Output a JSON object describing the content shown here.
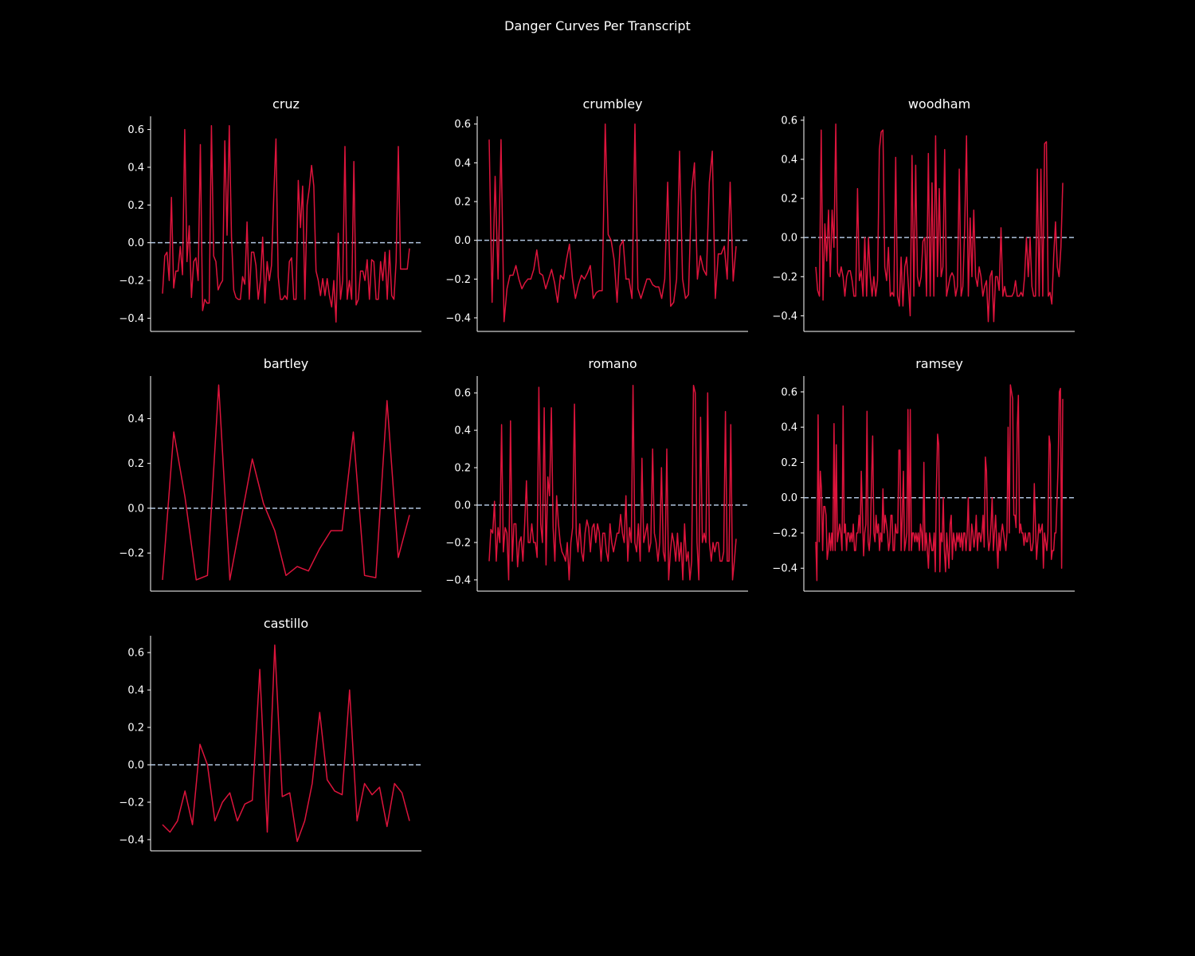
{
  "figure": {
    "title": "Danger Curves Per Transcript",
    "background": "#000000",
    "line_color": "#dc143c",
    "zero_line_color": "#b0c4de",
    "text_color": "#ffffff"
  },
  "chart_data": [
    {
      "type": "line",
      "title": "cruz",
      "xlabel": "",
      "ylabel": "",
      "yticks": [
        -0.4,
        -0.2,
        0.0,
        0.2,
        0.4,
        0.6
      ],
      "ylim": [
        -0.47,
        0.67
      ],
      "reference_line": 0.0,
      "series": [
        {
          "values": [
            -0.27,
            -0.07,
            -0.05,
            -0.2,
            0.24,
            -0.24,
            -0.15,
            -0.15,
            -0.02,
            -0.17,
            0.6,
            -0.1,
            0.09,
            -0.29,
            -0.1,
            -0.08,
            -0.2,
            0.52,
            -0.36,
            -0.3,
            -0.32,
            -0.32,
            0.62,
            -0.07,
            -0.1,
            -0.25,
            -0.22,
            -0.2,
            0.54,
            0.04,
            0.62,
            0.03,
            -0.25,
            -0.29,
            -0.3,
            -0.3,
            -0.18,
            -0.22,
            0.11,
            -0.3,
            -0.05,
            -0.05,
            -0.12,
            -0.3,
            -0.2,
            0.03,
            -0.32,
            -0.1,
            -0.2,
            -0.12,
            0.24,
            0.55,
            -0.18,
            -0.3,
            -0.3,
            -0.28,
            -0.3,
            -0.1,
            -0.08,
            -0.3,
            -0.3,
            0.33,
            0.08,
            0.3,
            -0.3,
            0.2,
            0.29,
            0.41,
            0.3,
            -0.15,
            -0.2,
            -0.28,
            -0.19,
            -0.28,
            -0.19,
            -0.28,
            -0.34,
            -0.2,
            -0.42,
            0.05,
            -0.3,
            -0.2,
            0.51,
            -0.3,
            -0.2,
            -0.3,
            0.43,
            -0.33,
            -0.3,
            -0.15,
            -0.15,
            -0.2,
            -0.09,
            -0.3,
            -0.09,
            -0.1,
            -0.3,
            -0.3,
            -0.1,
            -0.2,
            -0.05,
            -0.3,
            -0.04,
            -0.28,
            -0.3,
            -0.1,
            0.51,
            -0.14,
            -0.14,
            -0.14,
            -0.14,
            -0.03
          ]
        }
      ]
    },
    {
      "type": "line",
      "title": "crumbley",
      "xlabel": "",
      "ylabel": "",
      "yticks": [
        -0.4,
        -0.2,
        0.0,
        0.2,
        0.4,
        0.6
      ],
      "ylim": [
        -0.47,
        0.64
      ],
      "reference_line": 0.0,
      "series": [
        {
          "values": [
            0.52,
            -0.32,
            0.33,
            -0.2,
            0.52,
            -0.42,
            -0.25,
            -0.18,
            -0.18,
            -0.13,
            -0.2,
            -0.25,
            -0.22,
            -0.2,
            -0.2,
            -0.15,
            -0.05,
            -0.17,
            -0.18,
            -0.25,
            -0.2,
            -0.15,
            -0.22,
            -0.32,
            -0.18,
            -0.2,
            -0.1,
            -0.02,
            -0.2,
            -0.3,
            -0.23,
            -0.18,
            -0.2,
            -0.17,
            -0.13,
            -0.3,
            -0.27,
            -0.26,
            -0.26,
            0.6,
            0.03,
            0.0,
            -0.1,
            -0.32,
            -0.03,
            0.0,
            -0.2,
            -0.2,
            -0.3,
            0.6,
            -0.25,
            -0.3,
            -0.25,
            -0.2,
            -0.2,
            -0.23,
            -0.24,
            -0.24,
            -0.3,
            -0.2,
            0.3,
            -0.34,
            -0.32,
            -0.2,
            0.46,
            -0.2,
            -0.3,
            -0.28,
            0.25,
            0.4,
            -0.2,
            -0.08,
            -0.15,
            -0.18,
            0.3,
            0.46,
            -0.3,
            -0.07,
            -0.07,
            -0.03,
            -0.2,
            0.3,
            -0.21,
            -0.03
          ]
        }
      ]
    },
    {
      "type": "line",
      "title": "woodham",
      "xlabel": "",
      "ylabel": "",
      "yticks": [
        -0.4,
        -0.2,
        0.0,
        0.2,
        0.4,
        0.6
      ],
      "ylim": [
        -0.48,
        0.62
      ],
      "reference_line": 0.0,
      "series": [
        {
          "values": [
            -0.15,
            -0.27,
            -0.3,
            0.55,
            -0.32,
            0.07,
            -0.12,
            0.14,
            -0.2,
            0.14,
            -0.05,
            0.58,
            -0.18,
            -0.2,
            -0.15,
            -0.2,
            -0.3,
            -0.2,
            -0.17,
            -0.17,
            -0.22,
            -0.3,
            -0.3,
            0.25,
            -0.22,
            -0.17,
            -0.3,
            0.0,
            -0.3,
            0.0,
            -0.2,
            -0.3,
            -0.2,
            -0.3,
            -0.22,
            0.45,
            0.54,
            0.55,
            -0.15,
            -0.22,
            -0.05,
            -0.3,
            -0.28,
            -0.3,
            0.41,
            -0.3,
            -0.35,
            -0.1,
            -0.35,
            -0.15,
            -0.1,
            -0.25,
            -0.4,
            0.42,
            -0.3,
            0.37,
            -0.2,
            -0.25,
            -0.2,
            -0.02,
            0.0,
            -0.3,
            0.43,
            -0.3,
            0.28,
            -0.3,
            0.52,
            -0.2,
            0.25,
            -0.2,
            -0.15,
            0.45,
            -0.3,
            -0.25,
            -0.2,
            -0.18,
            -0.2,
            -0.3,
            -0.25,
            0.35,
            -0.3,
            -0.25,
            0.05,
            0.52,
            -0.3,
            0.1,
            -0.2,
            0.14,
            -0.2,
            -0.25,
            -0.15,
            -0.2,
            -0.3,
            -0.25,
            -0.22,
            -0.43,
            -0.2,
            -0.17,
            -0.43,
            -0.2,
            -0.2,
            -0.27,
            0.05,
            -0.3,
            -0.25,
            -0.3,
            -0.3,
            -0.3,
            -0.3,
            -0.28,
            -0.22,
            -0.3,
            -0.3,
            -0.28,
            -0.3,
            -0.2,
            0.0,
            -0.2,
            0.0,
            -0.25,
            -0.3,
            -0.3,
            0.35,
            -0.3,
            0.35,
            -0.3,
            0.48,
            0.49,
            -0.3,
            -0.28,
            -0.34,
            -0.1,
            0.08,
            -0.15,
            -0.2,
            -0.05,
            0.28
          ]
        }
      ]
    },
    {
      "type": "line",
      "title": "bartley",
      "xlabel": "",
      "ylabel": "",
      "yticks": [
        -0.2,
        0.0,
        0.2,
        0.4
      ],
      "ylim": [
        -0.37,
        0.59
      ],
      "reference_line": 0.0,
      "series": [
        {
          "values": [
            -0.32,
            0.34,
            0.05,
            -0.32,
            -0.3,
            0.55,
            -0.32,
            -0.05,
            0.22,
            0.02,
            -0.1,
            -0.3,
            -0.26,
            -0.28,
            -0.18,
            -0.1,
            -0.1,
            0.34,
            -0.3,
            -0.31,
            0.48,
            -0.22,
            -0.03
          ]
        }
      ]
    },
    {
      "type": "line",
      "title": "romano",
      "xlabel": "",
      "ylabel": "",
      "yticks": [
        -0.4,
        -0.2,
        0.0,
        0.2,
        0.4,
        0.6
      ],
      "ylim": [
        -0.46,
        0.69
      ],
      "reference_line": 0.0,
      "series": [
        {
          "values": [
            -0.3,
            -0.13,
            -0.15,
            0.02,
            -0.3,
            -0.12,
            -0.2,
            0.43,
            -0.25,
            -0.12,
            -0.15,
            -0.4,
            0.45,
            -0.3,
            -0.1,
            -0.1,
            -0.33,
            -0.2,
            -0.17,
            -0.3,
            -0.1,
            0.13,
            -0.2,
            -0.2,
            -0.1,
            -0.2,
            -0.2,
            -0.28,
            0.63,
            -0.1,
            -0.2,
            0.52,
            -0.32,
            0.15,
            0.05,
            0.52,
            -0.12,
            -0.3,
            0.05,
            -0.1,
            -0.2,
            -0.25,
            -0.27,
            -0.3,
            -0.2,
            -0.4,
            -0.2,
            -0.12,
            0.54,
            -0.15,
            -0.25,
            -0.1,
            -0.25,
            -0.3,
            -0.15,
            -0.08,
            -0.12,
            -0.25,
            -0.12,
            -0.1,
            -0.2,
            -0.1,
            -0.15,
            -0.3,
            -0.15,
            -0.15,
            -0.25,
            -0.3,
            -0.1,
            -0.2,
            -0.25,
            -0.2,
            -0.15,
            -0.15,
            -0.05,
            -0.15,
            -0.2,
            0.05,
            -0.3,
            -0.12,
            -0.2,
            0.64,
            -0.2,
            -0.25,
            -0.1,
            -0.3,
            0.25,
            -0.2,
            -0.15,
            -0.1,
            -0.25,
            -0.2,
            0.3,
            -0.15,
            -0.2,
            -0.3,
            -0.2,
            0.2,
            -0.25,
            -0.3,
            0.3,
            -0.4,
            -0.25,
            -0.15,
            -0.2,
            -0.3,
            -0.15,
            -0.3,
            -0.2,
            -0.4,
            -0.1,
            -0.3,
            -0.25,
            -0.4,
            -0.3,
            0.64,
            0.6,
            -0.2,
            -0.4,
            0.47,
            -0.2,
            -0.15,
            -0.2,
            0.6,
            -0.2,
            -0.3,
            -0.2,
            -0.25,
            -0.2,
            -0.2,
            -0.3,
            -0.3,
            -0.25,
            0.5,
            -0.3,
            -0.3,
            0.43,
            -0.4,
            -0.3,
            -0.18
          ]
        }
      ]
    },
    {
      "type": "line",
      "title": "ramsey",
      "xlabel": "",
      "ylabel": "",
      "yticks": [
        -0.4,
        -0.2,
        0.0,
        0.2,
        0.4,
        0.6
      ],
      "ylim": [
        -0.53,
        0.69
      ],
      "reference_line": 0.0,
      "series": [
        {
          "values": [
            -0.25,
            -0.47,
            0.47,
            -0.25,
            0.15,
            0.05,
            -0.3,
            -0.05,
            -0.05,
            -0.1,
            -0.35,
            -0.3,
            -0.2,
            -0.3,
            -0.2,
            -0.3,
            0.42,
            -0.3,
            0.3,
            -0.25,
            -0.2,
            -0.15,
            -0.2,
            -0.3,
            0.52,
            -0.2,
            -0.15,
            -0.3,
            -0.2,
            -0.2,
            -0.25,
            -0.2,
            -0.25,
            -0.15,
            -0.3,
            -0.3,
            -0.2,
            -0.2,
            -0.1,
            -0.2,
            0.15,
            -0.1,
            -0.33,
            -0.2,
            -0.15,
            0.49,
            -0.25,
            -0.3,
            -0.2,
            0.1,
            0.35,
            -0.2,
            -0.25,
            -0.1,
            -0.2,
            -0.15,
            -0.3,
            -0.2,
            -0.25,
            0.05,
            -0.2,
            -0.1,
            -0.15,
            -0.2,
            -0.3,
            -0.25,
            -0.1,
            -0.1,
            -0.3,
            -0.3,
            -0.15,
            -0.2,
            -0.2,
            0.27,
            0.27,
            -0.3,
            -0.1,
            0.15,
            -0.3,
            -0.25,
            -0.2,
            0.5,
            -0.3,
            0.5,
            -0.3,
            -0.2,
            -0.2,
            -0.25,
            -0.2,
            -0.25,
            -0.2,
            -0.3,
            -0.15,
            -0.2,
            -0.3,
            0.2,
            -0.3,
            -0.2,
            -0.3,
            -0.4,
            -0.2,
            -0.25,
            -0.3,
            -0.3,
            -0.2,
            -0.42,
            0.05,
            0.36,
            0.3,
            -0.42,
            -0.2,
            -0.25,
            0.0,
            -0.3,
            -0.42,
            -0.2,
            -0.3,
            -0.4,
            -0.15,
            -0.1,
            -0.35,
            -0.2,
            -0.25,
            -0.3,
            -0.2,
            -0.25,
            -0.2,
            -0.28,
            -0.2,
            -0.3,
            -0.2,
            -0.2,
            -0.3,
            -0.2,
            0.0,
            -0.3,
            -0.3,
            -0.15,
            -0.2,
            -0.28,
            -0.22,
            -0.1,
            -0.3,
            -0.2,
            -0.2,
            -0.25,
            -0.2,
            -0.1,
            -0.28,
            0.23,
            0.15,
            -0.2,
            -0.3,
            -0.25,
            -0.15,
            0.0,
            -0.3,
            -0.2,
            -0.1,
            -0.25,
            -0.4,
            -0.2,
            -0.3,
            -0.2,
            -0.15,
            -0.2,
            -0.25,
            -0.3,
            -0.2,
            0.4,
            -0.2,
            0.64,
            0.6,
            0.56,
            -0.1,
            -0.1,
            -0.17,
            0.4,
            0.58,
            -0.2,
            -0.15,
            -0.2,
            -0.2,
            -0.27,
            -0.2,
            -0.25,
            -0.25,
            -0.2,
            -0.2,
            -0.3,
            -0.3,
            -0.25,
            0.08,
            -0.15,
            -0.35,
            -0.25,
            -0.15,
            -0.2,
            -0.18,
            -0.15,
            -0.4,
            -0.2,
            -0.25,
            -0.3,
            -0.2,
            0.35,
            0.3,
            -0.35,
            -0.3,
            -0.3,
            -0.2,
            -0.2,
            0.0,
            0.2,
            0.6,
            0.62,
            -0.4,
            0.56
          ]
        }
      ]
    },
    {
      "type": "line",
      "title": "castillo",
      "xlabel": "",
      "ylabel": "",
      "yticks": [
        -0.4,
        -0.2,
        0.0,
        0.2,
        0.4,
        0.6
      ],
      "ylim": [
        -0.46,
        0.69
      ],
      "reference_line": 0.0,
      "series": [
        {
          "values": [
            -0.32,
            -0.36,
            -0.3,
            -0.14,
            -0.32,
            0.11,
            0.0,
            -0.3,
            -0.2,
            -0.15,
            -0.3,
            -0.21,
            -0.19,
            0.51,
            -0.36,
            0.64,
            -0.17,
            -0.15,
            -0.41,
            -0.3,
            -0.1,
            0.28,
            -0.08,
            -0.14,
            -0.16,
            0.4,
            -0.3,
            -0.1,
            -0.16,
            -0.12,
            -0.33,
            -0.1,
            -0.15,
            -0.3
          ]
        }
      ]
    }
  ]
}
